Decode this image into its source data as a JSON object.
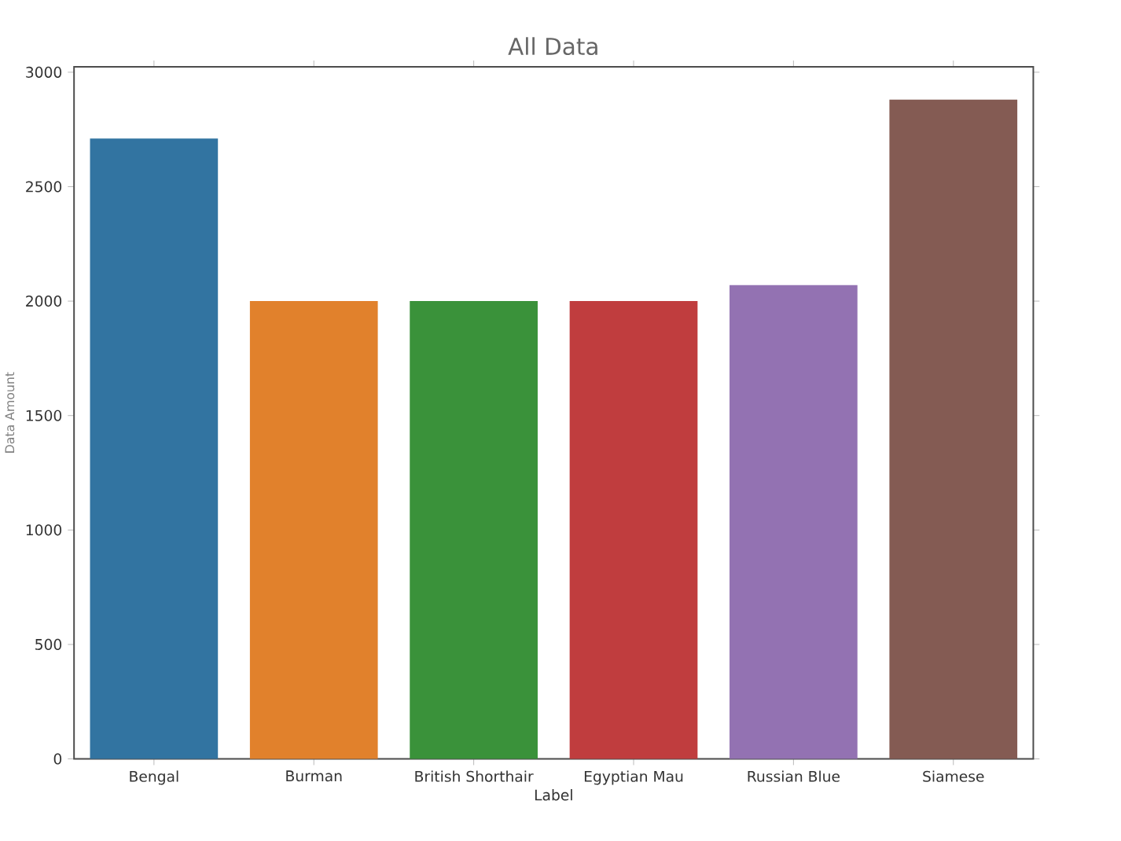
{
  "chart_data": {
    "type": "bar",
    "title": "All Data",
    "xlabel": "Label",
    "ylabel": "Data Amount",
    "categories": [
      "Bengal",
      "Burman",
      "British Shorthair",
      "Egyptian Mau",
      "Russian Blue",
      "Siamese"
    ],
    "values": [
      2710,
      2000,
      2000,
      2000,
      2070,
      2880
    ],
    "colors": [
      "#3274a1",
      "#e1812c",
      "#3a923a",
      "#c03d3e",
      "#9372b2",
      "#845b53"
    ],
    "ylim": [
      0,
      3024
    ],
    "yticks": [
      0,
      500,
      1000,
      1500,
      2000,
      2500,
      3000
    ],
    "grid": false
  }
}
